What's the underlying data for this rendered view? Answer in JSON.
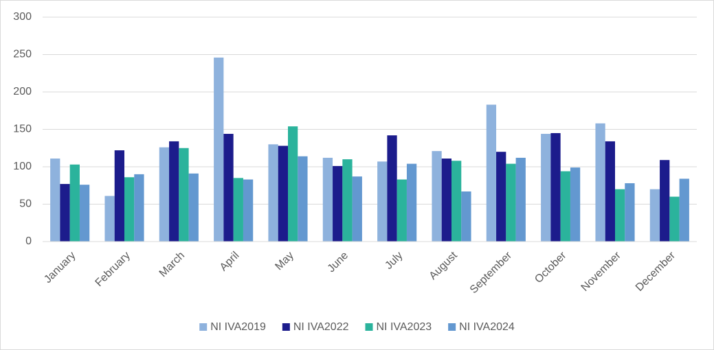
{
  "chart_data": {
    "type": "bar",
    "categories": [
      "January",
      "February",
      "March",
      "April",
      "May",
      "June",
      "July",
      "August",
      "September",
      "October",
      "November",
      "December"
    ],
    "series": [
      {
        "name": "NI IVA2019",
        "color": "#8eb2dd",
        "values": [
          111,
          61,
          126,
          246,
          130,
          112,
          107,
          121,
          183,
          144,
          158,
          70
        ]
      },
      {
        "name": "NI IVA2022",
        "color": "#1c1c8c",
        "values": [
          77,
          122,
          134,
          144,
          128,
          101,
          142,
          111,
          120,
          145,
          134,
          109
        ]
      },
      {
        "name": "NI IVA2023",
        "color": "#2bb39c",
        "values": [
          103,
          86,
          125,
          85,
          154,
          110,
          83,
          108,
          104,
          94,
          70,
          60
        ]
      },
      {
        "name": "NI IVA2024",
        "color": "#6398d0",
        "values": [
          76,
          90,
          91,
          83,
          114,
          87,
          104,
          67,
          112,
          99,
          78,
          84
        ]
      }
    ],
    "ylim": [
      0,
      300
    ],
    "yticks": [
      0,
      50,
      100,
      150,
      200,
      250,
      300
    ],
    "grid": true,
    "legend": "bottom"
  }
}
